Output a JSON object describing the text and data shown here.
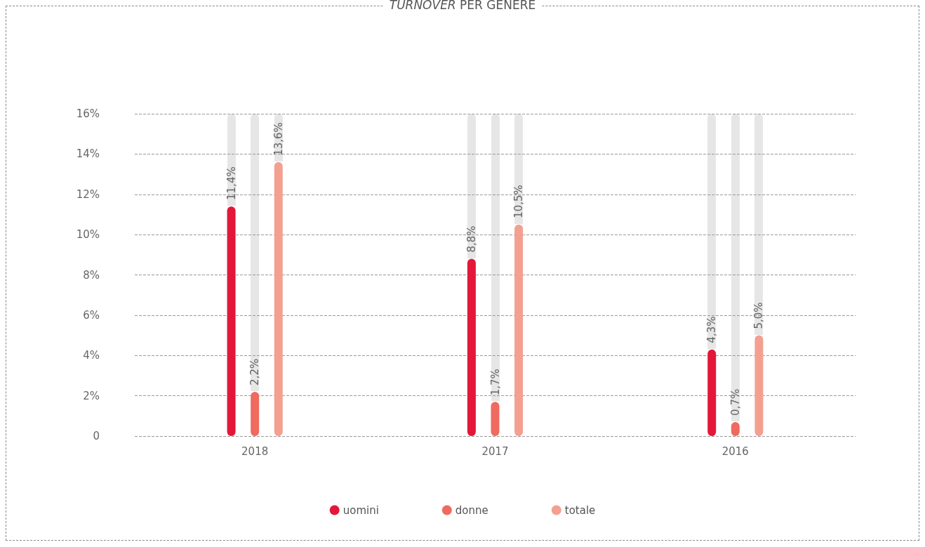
{
  "chart_data": {
    "type": "bar",
    "title": "TURNOVER PER GENERE",
    "categories": [
      "2018",
      "2017",
      "2016"
    ],
    "series": [
      {
        "name": "uomini",
        "color": "#e3173a",
        "values": [
          11.4,
          8.8,
          4.3
        ],
        "value_labels": [
          "11,4%",
          "8,8%",
          "4,3%"
        ]
      },
      {
        "name": "donne",
        "color": "#ef6b5f",
        "values": [
          2.2,
          1.7,
          0.7
        ],
        "value_labels": [
          "2,2%",
          "1,7%",
          "0,7%"
        ]
      },
      {
        "name": "totale",
        "color": "#f4a090",
        "values": [
          13.6,
          10.5,
          5.0
        ],
        "value_labels": [
          "13,6%",
          "10,5%",
          "5,0%"
        ]
      }
    ],
    "ylim": [
      0,
      16
    ],
    "yticks": [
      0,
      {
        "value": 2,
        "label": "2%"
      },
      {
        "value": 4,
        "label": "4%"
      },
      {
        "value": 6,
        "label": "6%"
      },
      {
        "value": 8,
        "label": "8%"
      },
      {
        "value": 10,
        "label": "10%"
      },
      {
        "value": 12,
        "label": "12%"
      },
      {
        "value": 14,
        "label": "14%"
      },
      {
        "value": 16,
        "label": "16%"
      }
    ],
    "grid": "y",
    "legend": "bottom"
  }
}
